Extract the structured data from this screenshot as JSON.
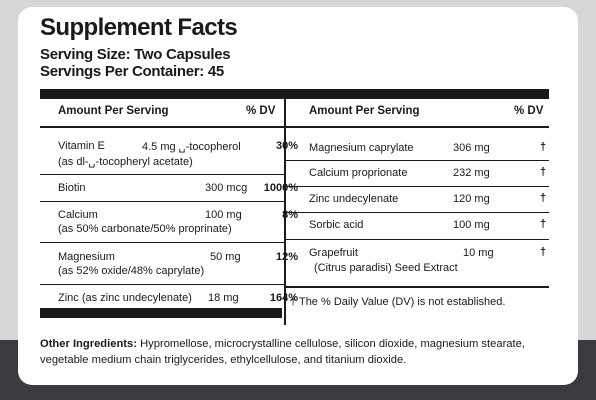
{
  "title": "Supplement Facts",
  "serving_size": "Serving Size: Two Capsules",
  "servings_per_container": "Servings Per Container: 45",
  "left_table": {
    "header_amount": "Amount Per Serving",
    "header_dv": "% DV",
    "rows": [
      {
        "name": "Vitamin E",
        "sub": "(as dl-␣-tocopheryl acetate)",
        "amount": "4.5 mg ␣-tocopherol",
        "dv": "30%"
      },
      {
        "name": "Biotin",
        "amount": "300 mcg",
        "dv": "1000%"
      },
      {
        "name": "Calcium",
        "sub": "(as 50% carbonate/50% proprinate)",
        "amount": "100 mg",
        "dv": "8%"
      },
      {
        "name": "Magnesium",
        "sub": "(as 52% oxide/48% caprylate)",
        "amount": "50 mg",
        "dv": "12%"
      },
      {
        "name": "Zinc (as zinc undecylenate)",
        "amount": "18 mg",
        "dv": "164%"
      }
    ]
  },
  "right_table": {
    "header_amount": "Amount Per Serving",
    "header_dv": "% DV",
    "rows": [
      {
        "name": "Magnesium caprylate",
        "amount": "306 mg",
        "dv": "†"
      },
      {
        "name": "Calcium proprionate",
        "amount": "232 mg",
        "dv": "†"
      },
      {
        "name": "Zinc undecylenate",
        "amount": "120 mg",
        "dv": "†"
      },
      {
        "name": "Sorbic acid",
        "amount": "100 mg",
        "dv": "†"
      },
      {
        "name": "Grapefruit",
        "sub": "(Citrus paradisi) Seed Extract",
        "amount": "10 mg",
        "dv": "†"
      }
    ],
    "footnote": "† The % Daily Value (DV) is not established."
  },
  "other_ingredients": {
    "label": "Other Ingredients:",
    "text": " Hypromellose, microcrystalline cellulose, silicon dioxide, magnesium stearate, vegetable medium chain triglycerides, ethylcellulose, and titanium dioxide."
  }
}
